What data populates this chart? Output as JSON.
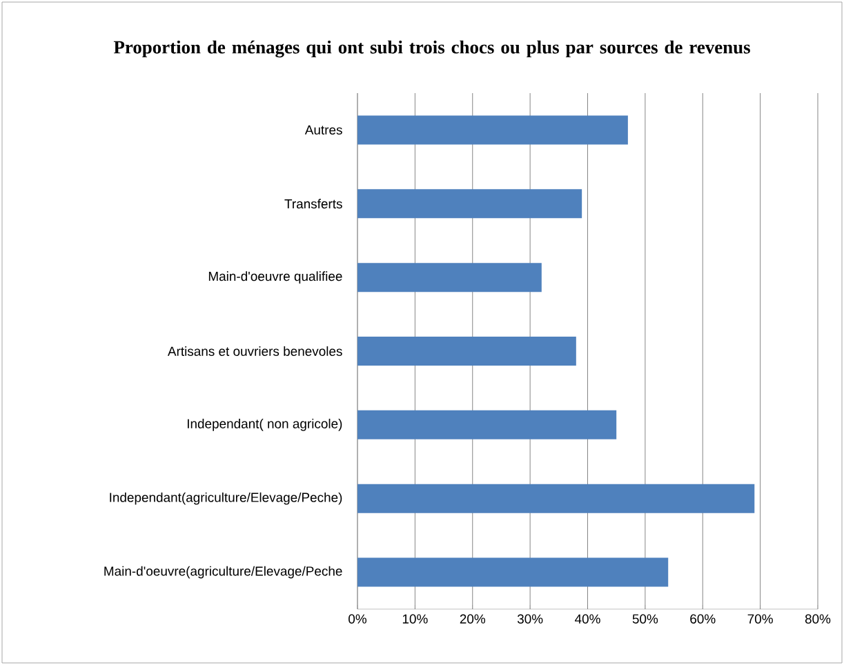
{
  "chart_data": {
    "type": "bar",
    "orientation": "horizontal",
    "title": "Proportion de ménages qui ont subi trois chocs ou plus par sources de revenus",
    "categories": [
      "Autres",
      "Transferts",
      "Main-d'oeuvre qualifiee",
      "Artisans et ouvriers benevoles",
      "Independant( non agricole)",
      "Independant(agriculture/Elevage/Peche)",
      "Main-d'oeuvre(agriculture/Elevage/Peche"
    ],
    "values": [
      47,
      39,
      32,
      38,
      45,
      69,
      54
    ],
    "color": "#4f81bd",
    "xlim": [
      0,
      80
    ],
    "xticks": [
      {
        "value": 0,
        "label": "0%"
      },
      {
        "value": 10,
        "label": "10%"
      },
      {
        "value": 20,
        "label": "20%"
      },
      {
        "value": 30,
        "label": "30%"
      },
      {
        "value": 40,
        "label": "40%"
      },
      {
        "value": 50,
        "label": "50%"
      },
      {
        "value": 60,
        "label": "60%"
      },
      {
        "value": 70,
        "label": "70%"
      },
      {
        "value": 80,
        "label": "80%"
      }
    ],
    "grid": "x"
  }
}
